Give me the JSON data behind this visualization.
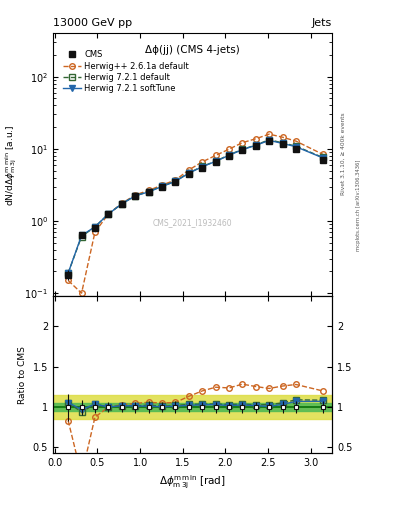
{
  "x": [
    0.157,
    0.314,
    0.471,
    0.628,
    0.785,
    0.942,
    1.099,
    1.257,
    1.414,
    1.571,
    1.728,
    1.885,
    2.042,
    2.199,
    2.356,
    2.513,
    2.67,
    2.827,
    3.141
  ],
  "cms_y": [
    0.18,
    0.65,
    0.8,
    1.25,
    1.7,
    2.2,
    2.5,
    3.0,
    3.5,
    4.5,
    5.5,
    6.5,
    8.0,
    9.5,
    11.0,
    13.0,
    11.5,
    10.0,
    7.0
  ],
  "cms_yerr": [
    0.03,
    0.06,
    0.06,
    0.08,
    0.1,
    0.15,
    0.18,
    0.2,
    0.25,
    0.3,
    0.35,
    0.45,
    0.55,
    0.65,
    0.75,
    0.9,
    0.8,
    0.7,
    0.55
  ],
  "hpp_y": [
    0.15,
    0.1,
    0.7,
    1.25,
    1.75,
    2.3,
    2.65,
    3.15,
    3.7,
    5.1,
    6.6,
    8.1,
    9.9,
    12.2,
    13.8,
    16.0,
    14.5,
    12.8,
    8.4
  ],
  "h721d_y": [
    0.19,
    0.61,
    0.83,
    1.25,
    1.73,
    2.23,
    2.56,
    3.03,
    3.57,
    4.65,
    5.7,
    6.75,
    8.25,
    9.85,
    11.3,
    13.4,
    12.1,
    10.9,
    7.6
  ],
  "h721s_y": [
    0.19,
    0.63,
    0.83,
    1.25,
    1.73,
    2.23,
    2.53,
    3.01,
    3.54,
    4.6,
    5.65,
    6.7,
    8.15,
    9.75,
    11.2,
    13.1,
    11.9,
    10.7,
    7.5
  ],
  "cms_color": "#111111",
  "hpp_color": "#cc6622",
  "h721d_color": "#336633",
  "h721s_color": "#2266aa",
  "band_inner_color": "#55bb55",
  "band_outer_color": "#dddd44",
  "band_line_color": "#117711",
  "ylim_main": [
    0.09,
    400
  ],
  "ylim_ratio": [
    0.43,
    2.37
  ],
  "xlim": [
    -0.02,
    3.25
  ],
  "plot_label": "Δϕ(jj) (CMS 4-jets)",
  "watermark": "CMS_2021_I1932460",
  "top_left": "13000 GeV pp",
  "top_right": "Jets",
  "right_text1": "Rivet 3.1.10, ≥ 400k events",
  "right_text2": "mcplots.cern.ch [arXiv:1306.3436]"
}
